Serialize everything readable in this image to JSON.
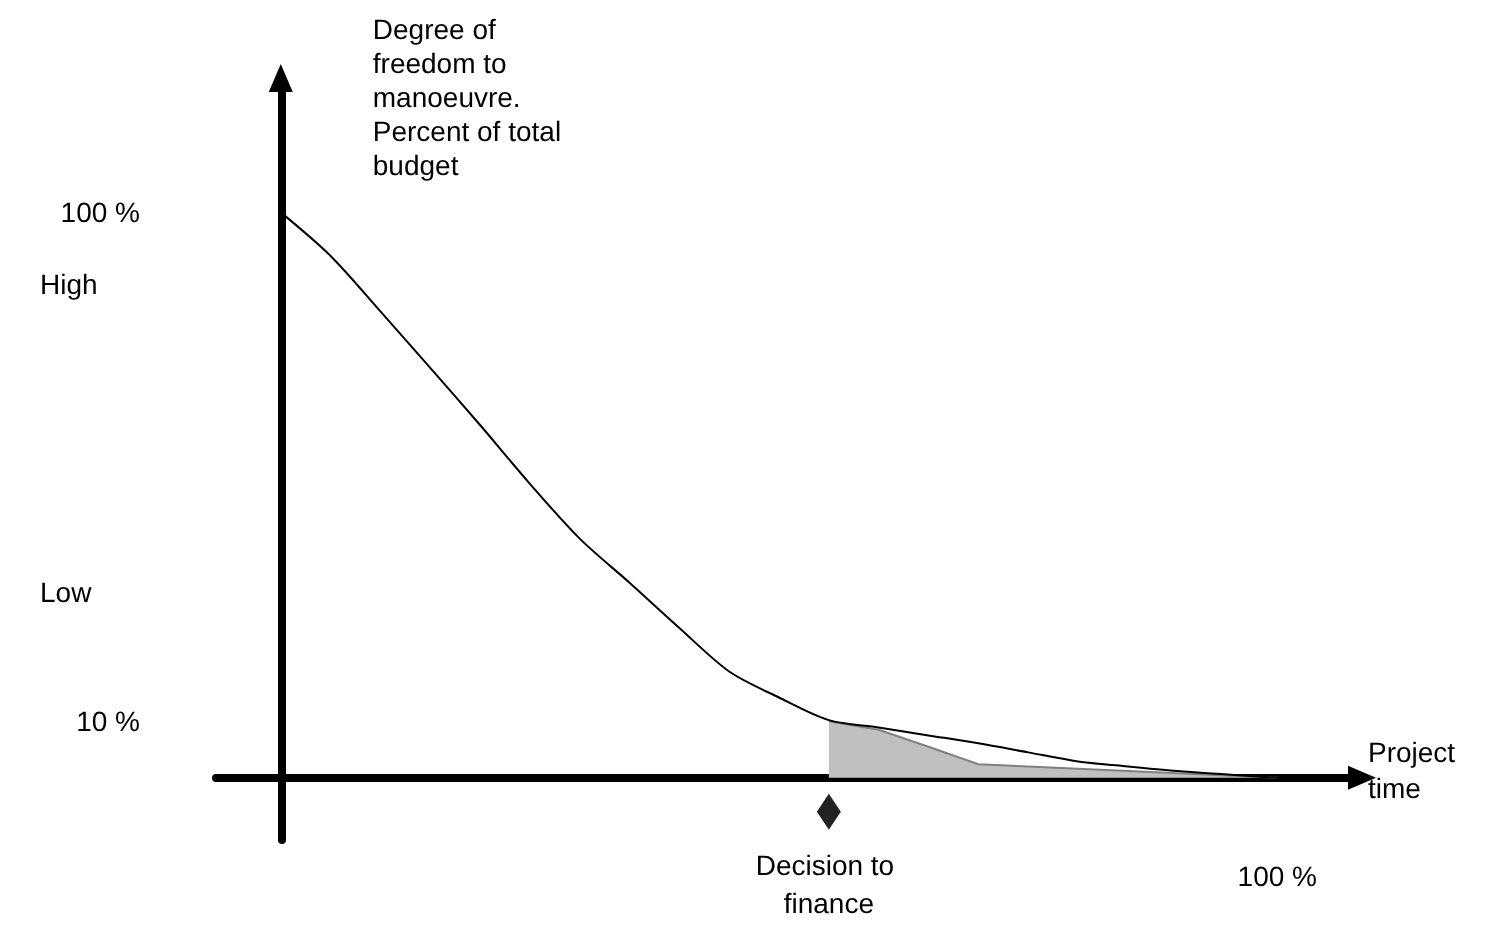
{
  "chart_data": {
    "type": "line",
    "ylabel": "Degree of freedom to manoeuvre. Percent of total budget",
    "xlabel": "Project time",
    "categories": [
      null,
      null,
      null,
      null,
      null,
      null,
      null,
      null,
      null,
      null,
      null,
      null,
      null,
      null,
      null,
      null,
      null,
      null,
      null,
      null,
      null
    ],
    "ylim": [
      -11,
      122
    ],
    "yticks": [
      {
        "value": 10,
        "label": "10 %"
      },
      {
        "value": 100,
        "label": "100 %"
      }
    ],
    "marker": "none",
    "series": [
      {
        "type": "area",
        "color": "#c0c0c0",
        "values": [
          null,
          null,
          null,
          null,
          null,
          null,
          null,
          null,
          null,
          null,
          null,
          10,
          8.5,
          5.5,
          2.4,
          2,
          1.6,
          1.2,
          0.8,
          0.4,
          0
        ]
      },
      {
        "color": "#000000",
        "values": [
          100,
          92.3,
          82.5,
          72.5,
          62.4,
          52,
          42.3,
          34.5,
          26.5,
          18.8,
          14.2,
          10.2,
          8.9,
          7.5,
          6.1,
          4.5,
          2.9,
          2,
          1.2,
          0.6,
          0
        ]
      }
    ],
    "annotations": [
      "High",
      "Low",
      "Decision to finance",
      "100 %"
    ]
  }
}
